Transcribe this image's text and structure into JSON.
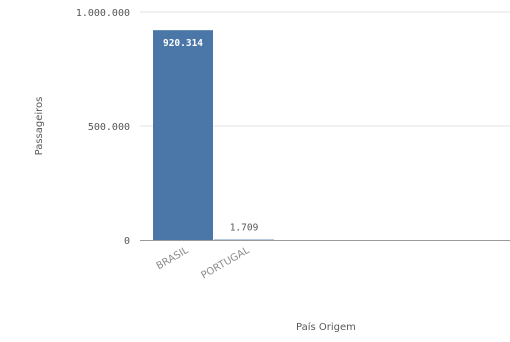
{
  "chart_data": {
    "type": "bar",
    "categories": [
      "BRASIL",
      "PORTUGAL"
    ],
    "values": [
      920314,
      1709
    ],
    "value_labels": [
      "920.314",
      "1.709"
    ],
    "y_ticks": [
      {
        "value": 0,
        "label": "0"
      },
      {
        "value": 500000,
        "label": "500.000"
      },
      {
        "value": 1000000,
        "label": "1.000.000"
      }
    ],
    "ylim": [
      0,
      1000000
    ],
    "title": "",
    "xlabel": "País Origem",
    "ylabel": "Passageiros",
    "grid": true,
    "bar_color": "#4a77a8",
    "inside_label_color": "#ffffff",
    "outside_label_color": "#595959",
    "grid_color": "#e3e3e3",
    "axis_color": "#9a9a9a"
  }
}
